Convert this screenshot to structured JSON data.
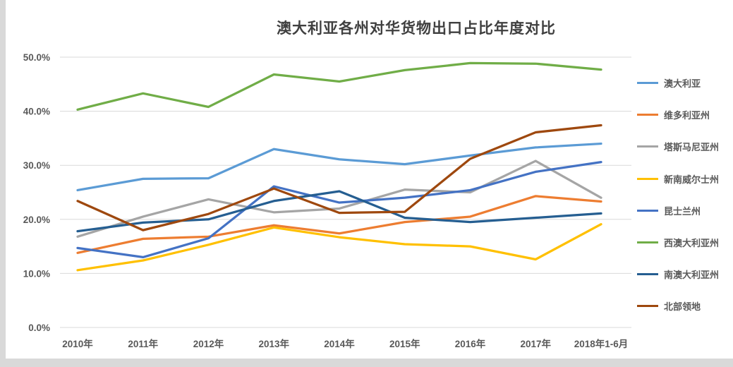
{
  "page": {
    "background": "#FFFFFF",
    "edge_strip_color": "#D9D9D9",
    "gridline_color": "#D9D9D9",
    "axis_label_color": "#595959",
    "title_color": "#404040"
  },
  "chart_data": {
    "type": "line",
    "title": "澳大利亚各州对华货物出口占比年度对比",
    "xlabel": "",
    "ylabel": "",
    "ylim": [
      0,
      50
    ],
    "ytick_step": 10,
    "ytick_labels": [
      "0.0%",
      "10.0%",
      "20.0%",
      "30.0%",
      "40.0%",
      "50.0%"
    ],
    "grid": "horizontal",
    "legend_position": "right",
    "categories": [
      "2010年",
      "2011年",
      "2012年",
      "2013年",
      "2014年",
      "2015年",
      "2016年",
      "2017年",
      "2018年1-6月"
    ],
    "series": [
      {
        "name": "澳大利亚",
        "color": "#5B9BD5",
        "values": [
          25.4,
          27.5,
          27.6,
          33.0,
          31.1,
          30.2,
          31.8,
          33.3,
          34.0
        ]
      },
      {
        "name": "维多利亚州",
        "color": "#ED7D31",
        "values": [
          13.8,
          16.4,
          16.8,
          18.9,
          17.4,
          19.5,
          20.5,
          24.3,
          23.3
        ]
      },
      {
        "name": "塔斯马尼亚州",
        "color": "#A5A5A5",
        "values": [
          16.8,
          20.5,
          23.7,
          21.3,
          22.0,
          25.5,
          25.0,
          30.8,
          24.0
        ]
      },
      {
        "name": "新南威尔士州",
        "color": "#FFC000",
        "values": [
          10.6,
          12.4,
          15.3,
          18.5,
          16.7,
          15.4,
          15.0,
          12.6,
          19.1
        ]
      },
      {
        "name": "昆士兰州",
        "color": "#4472C4",
        "values": [
          14.7,
          13.0,
          16.5,
          26.1,
          23.1,
          24.0,
          25.4,
          28.8,
          30.6
        ]
      },
      {
        "name": "西澳大利亚州",
        "color": "#70AD47",
        "values": [
          40.3,
          43.3,
          40.8,
          46.8,
          45.5,
          47.6,
          48.9,
          48.8,
          47.7
        ]
      },
      {
        "name": "南澳大利亚州",
        "color": "#255E91",
        "values": [
          17.8,
          19.4,
          20.0,
          23.4,
          25.2,
          20.3,
          19.5,
          20.3,
          21.1
        ]
      },
      {
        "name": "北部领地",
        "color": "#9E480E",
        "values": [
          23.4,
          18.0,
          21.0,
          25.7,
          21.2,
          21.4,
          31.2,
          36.1,
          37.4
        ]
      }
    ]
  }
}
